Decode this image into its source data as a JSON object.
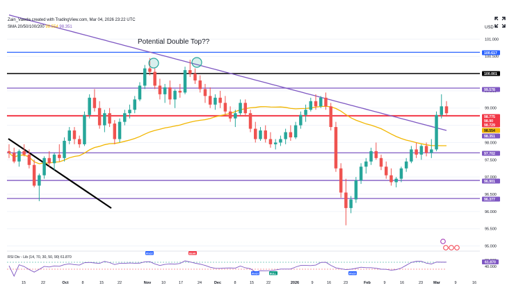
{
  "header": {
    "attribution": "Zain_Vawda created with TradingView.com, Mar 04, 2026 23:22 UTC",
    "sma_label": "SMA 20/50/100/200",
    "sma_val_1": "98.554",
    "sma_val_2": "98.351"
  },
  "currency": "USD",
  "annotation": "Potential Double Top??",
  "price_labels": [
    "101.000",
    "100.500",
    "99.500",
    "99.000",
    "98.000",
    "97.500",
    "97.000",
    "96.500",
    "96.000",
    "95.500",
    "95.000"
  ],
  "level_badges": [
    {
      "value": "100.617",
      "color": "#2962ff"
    },
    {
      "value": "100.001",
      "color": "#000000"
    },
    {
      "value": "99.578",
      "color": "#7e57c2"
    },
    {
      "value": "98.775",
      "color": "#f23645"
    },
    {
      "value": "98.90",
      "color": "#f23645"
    },
    {
      "value": "98.729",
      "color": "#f23645"
    },
    {
      "value": "98.554",
      "color": "#f2b600"
    },
    {
      "value": "98.351",
      "color": "#7e57c2"
    },
    {
      "value": "97.702",
      "color": "#7e57c2"
    },
    {
      "value": "96.901",
      "color": "#7e57c2"
    },
    {
      "value": "96.377",
      "color": "#7e57c2"
    }
  ],
  "rsi": {
    "label": "RSI Div - Lib (14, 70, 30, 50, 90) 61.870",
    "value": "61.870",
    "ticks": [
      "80.000",
      "40.000"
    ],
    "signals": [
      {
        "text": "PIVOT",
        "color": "#2962ff"
      },
      {
        "text": "BEAR",
        "color": "#f23645"
      },
      {
        "text": "PIVOT",
        "color": "#2962ff"
      },
      {
        "text": "BULL",
        "color": "#089981"
      },
      {
        "text": "PIVOT",
        "color": "#2962ff"
      }
    ]
  },
  "x_labels": [
    "15",
    "22",
    "Oct",
    "8",
    "15",
    "22",
    "Nov",
    "10",
    "17",
    "24",
    "Dec",
    "8",
    "15",
    "22",
    "2026",
    "9",
    "16",
    "23",
    "Feb",
    "9",
    "16",
    "23",
    "Mar",
    "9",
    "16"
  ],
  "colors": {
    "up": "#26a69a",
    "down": "#ef5350",
    "sma_fast": "#f2b600",
    "sma_slow": "#7e57c2",
    "trendline": "#000000"
  },
  "chart_data": {
    "type": "candlestick",
    "instrument_note": "SMA 20/50/100/200",
    "y_range": [
      95.0,
      101.0
    ],
    "horizontal_levels": [
      100.617,
      100.001,
      99.578,
      98.775,
      97.702,
      96.901,
      96.377
    ],
    "sma": [
      {
        "name": "SMA 20/50/100/200",
        "last_value": 98.554,
        "color": "#f2b600"
      },
      {
        "name": "SMA 20/50/100/200",
        "last_value": 98.351,
        "color": "#7e57c2"
      }
    ],
    "candles_ohlc": [
      [
        97.75,
        97.95,
        97.55,
        97.7
      ],
      [
        97.7,
        97.85,
        97.4,
        97.45
      ],
      [
        97.45,
        97.8,
        97.3,
        97.75
      ],
      [
        97.75,
        97.95,
        97.6,
        97.65
      ],
      [
        97.65,
        97.8,
        97.25,
        97.35
      ],
      [
        97.35,
        97.5,
        96.7,
        96.75
      ],
      [
        96.75,
        97.1,
        96.3,
        97.05
      ],
      [
        97.05,
        97.6,
        96.95,
        97.55
      ],
      [
        97.55,
        97.75,
        97.3,
        97.4
      ],
      [
        97.4,
        97.7,
        97.2,
        97.65
      ],
      [
        97.65,
        97.95,
        97.45,
        97.55
      ],
      [
        97.55,
        98.15,
        97.45,
        98.05
      ],
      [
        98.05,
        98.45,
        97.95,
        98.35
      ],
      [
        98.35,
        98.45,
        97.95,
        98.1
      ],
      [
        98.1,
        98.2,
        97.85,
        97.95
      ],
      [
        97.95,
        98.9,
        97.9,
        98.8
      ],
      [
        98.8,
        99.4,
        98.7,
        99.3
      ],
      [
        99.3,
        99.55,
        98.9,
        99.0
      ],
      [
        99.0,
        99.2,
        98.4,
        98.5
      ],
      [
        98.5,
        98.95,
        98.3,
        98.85
      ],
      [
        98.85,
        99.0,
        98.45,
        98.55
      ],
      [
        98.55,
        98.65,
        97.95,
        98.1
      ],
      [
        98.1,
        98.7,
        98.0,
        98.6
      ],
      [
        98.6,
        98.95,
        98.5,
        98.85
      ],
      [
        98.85,
        99.1,
        98.7,
        98.95
      ],
      [
        98.95,
        99.35,
        98.85,
        99.25
      ],
      [
        99.25,
        99.75,
        99.2,
        99.65
      ],
      [
        99.65,
        100.25,
        99.55,
        100.15
      ],
      [
        100.15,
        100.45,
        99.95,
        100.05
      ],
      [
        100.05,
        100.15,
        99.55,
        99.65
      ],
      [
        99.65,
        99.85,
        99.25,
        99.4
      ],
      [
        99.4,
        99.7,
        99.15,
        99.6
      ],
      [
        99.6,
        99.8,
        99.1,
        99.25
      ],
      [
        99.25,
        99.55,
        99.0,
        99.5
      ],
      [
        99.5,
        99.7,
        99.3,
        99.45
      ],
      [
        99.45,
        100.2,
        99.4,
        100.1
      ],
      [
        100.1,
        100.4,
        99.9,
        100.0
      ],
      [
        100.0,
        100.15,
        99.7,
        99.8
      ],
      [
        99.8,
        99.95,
        99.45,
        99.55
      ],
      [
        99.55,
        99.7,
        99.15,
        99.35
      ],
      [
        99.35,
        99.6,
        99.0,
        99.1
      ],
      [
        99.1,
        99.4,
        98.95,
        99.3
      ],
      [
        99.3,
        99.5,
        99.0,
        99.15
      ],
      [
        99.15,
        99.35,
        98.8,
        98.9
      ],
      [
        98.9,
        99.05,
        98.6,
        98.7
      ],
      [
        98.7,
        98.95,
        98.45,
        98.85
      ],
      [
        98.85,
        99.25,
        98.8,
        99.15
      ],
      [
        99.15,
        99.25,
        98.75,
        98.85
      ],
      [
        98.85,
        98.95,
        98.3,
        98.4
      ],
      [
        98.4,
        98.6,
        98.0,
        98.1
      ],
      [
        98.1,
        98.45,
        98.05,
        98.35
      ],
      [
        98.35,
        98.5,
        98.0,
        98.1
      ],
      [
        98.1,
        98.3,
        97.85,
        97.95
      ],
      [
        97.95,
        98.1,
        97.8,
        98.0
      ],
      [
        98.0,
        98.2,
        97.9,
        98.1
      ],
      [
        98.1,
        98.4,
        97.95,
        98.3
      ],
      [
        98.3,
        98.5,
        98.05,
        98.15
      ],
      [
        98.15,
        98.6,
        98.1,
        98.5
      ],
      [
        98.5,
        98.9,
        98.4,
        98.8
      ],
      [
        98.8,
        99.1,
        98.6,
        98.95
      ],
      [
        98.95,
        99.3,
        98.9,
        99.2
      ],
      [
        99.2,
        99.4,
        98.95,
        99.05
      ],
      [
        99.05,
        99.35,
        99.0,
        99.3
      ],
      [
        99.3,
        99.45,
        98.95,
        99.05
      ],
      [
        99.05,
        99.15,
        98.35,
        98.45
      ],
      [
        98.45,
        98.6,
        97.15,
        97.25
      ],
      [
        97.25,
        97.4,
        96.4,
        96.55
      ],
      [
        96.55,
        96.95,
        95.6,
        96.1
      ],
      [
        96.1,
        96.45,
        95.95,
        96.35
      ],
      [
        96.35,
        97.0,
        96.25,
        96.9
      ],
      [
        96.9,
        97.4,
        96.8,
        97.3
      ],
      [
        97.3,
        97.55,
        97.1,
        97.45
      ],
      [
        97.45,
        97.85,
        97.35,
        97.75
      ],
      [
        97.75,
        98.0,
        97.5,
        97.55
      ],
      [
        97.55,
        97.65,
        97.2,
        97.3
      ],
      [
        97.3,
        97.45,
        96.95,
        97.05
      ],
      [
        97.05,
        97.25,
        96.75,
        96.85
      ],
      [
        96.85,
        97.0,
        96.7,
        96.95
      ],
      [
        96.95,
        97.3,
        96.85,
        97.25
      ],
      [
        97.25,
        97.55,
        97.15,
        97.45
      ],
      [
        97.45,
        97.9,
        97.4,
        97.8
      ],
      [
        97.8,
        98.0,
        97.55,
        97.65
      ],
      [
        97.65,
        97.95,
        97.5,
        97.9
      ],
      [
        97.9,
        98.0,
        97.6,
        97.7
      ],
      [
        97.7,
        98.1,
        97.55,
        97.8
      ],
      [
        97.8,
        98.9,
        97.75,
        98.8
      ],
      [
        98.8,
        99.4,
        98.7,
        99.05
      ],
      [
        99.05,
        99.2,
        98.75,
        98.85
      ]
    ],
    "rsi_y_ticks": [
      80,
      40
    ],
    "rsi_last": 61.87,
    "x_tick_labels": [
      "15",
      "22",
      "Oct",
      "8",
      "15",
      "22",
      "Nov",
      "10",
      "17",
      "24",
      "Dec",
      "8",
      "15",
      "22",
      "2026",
      "9",
      "16",
      "23",
      "Feb",
      "9",
      "16",
      "23",
      "Mar",
      "9",
      "16"
    ]
  }
}
